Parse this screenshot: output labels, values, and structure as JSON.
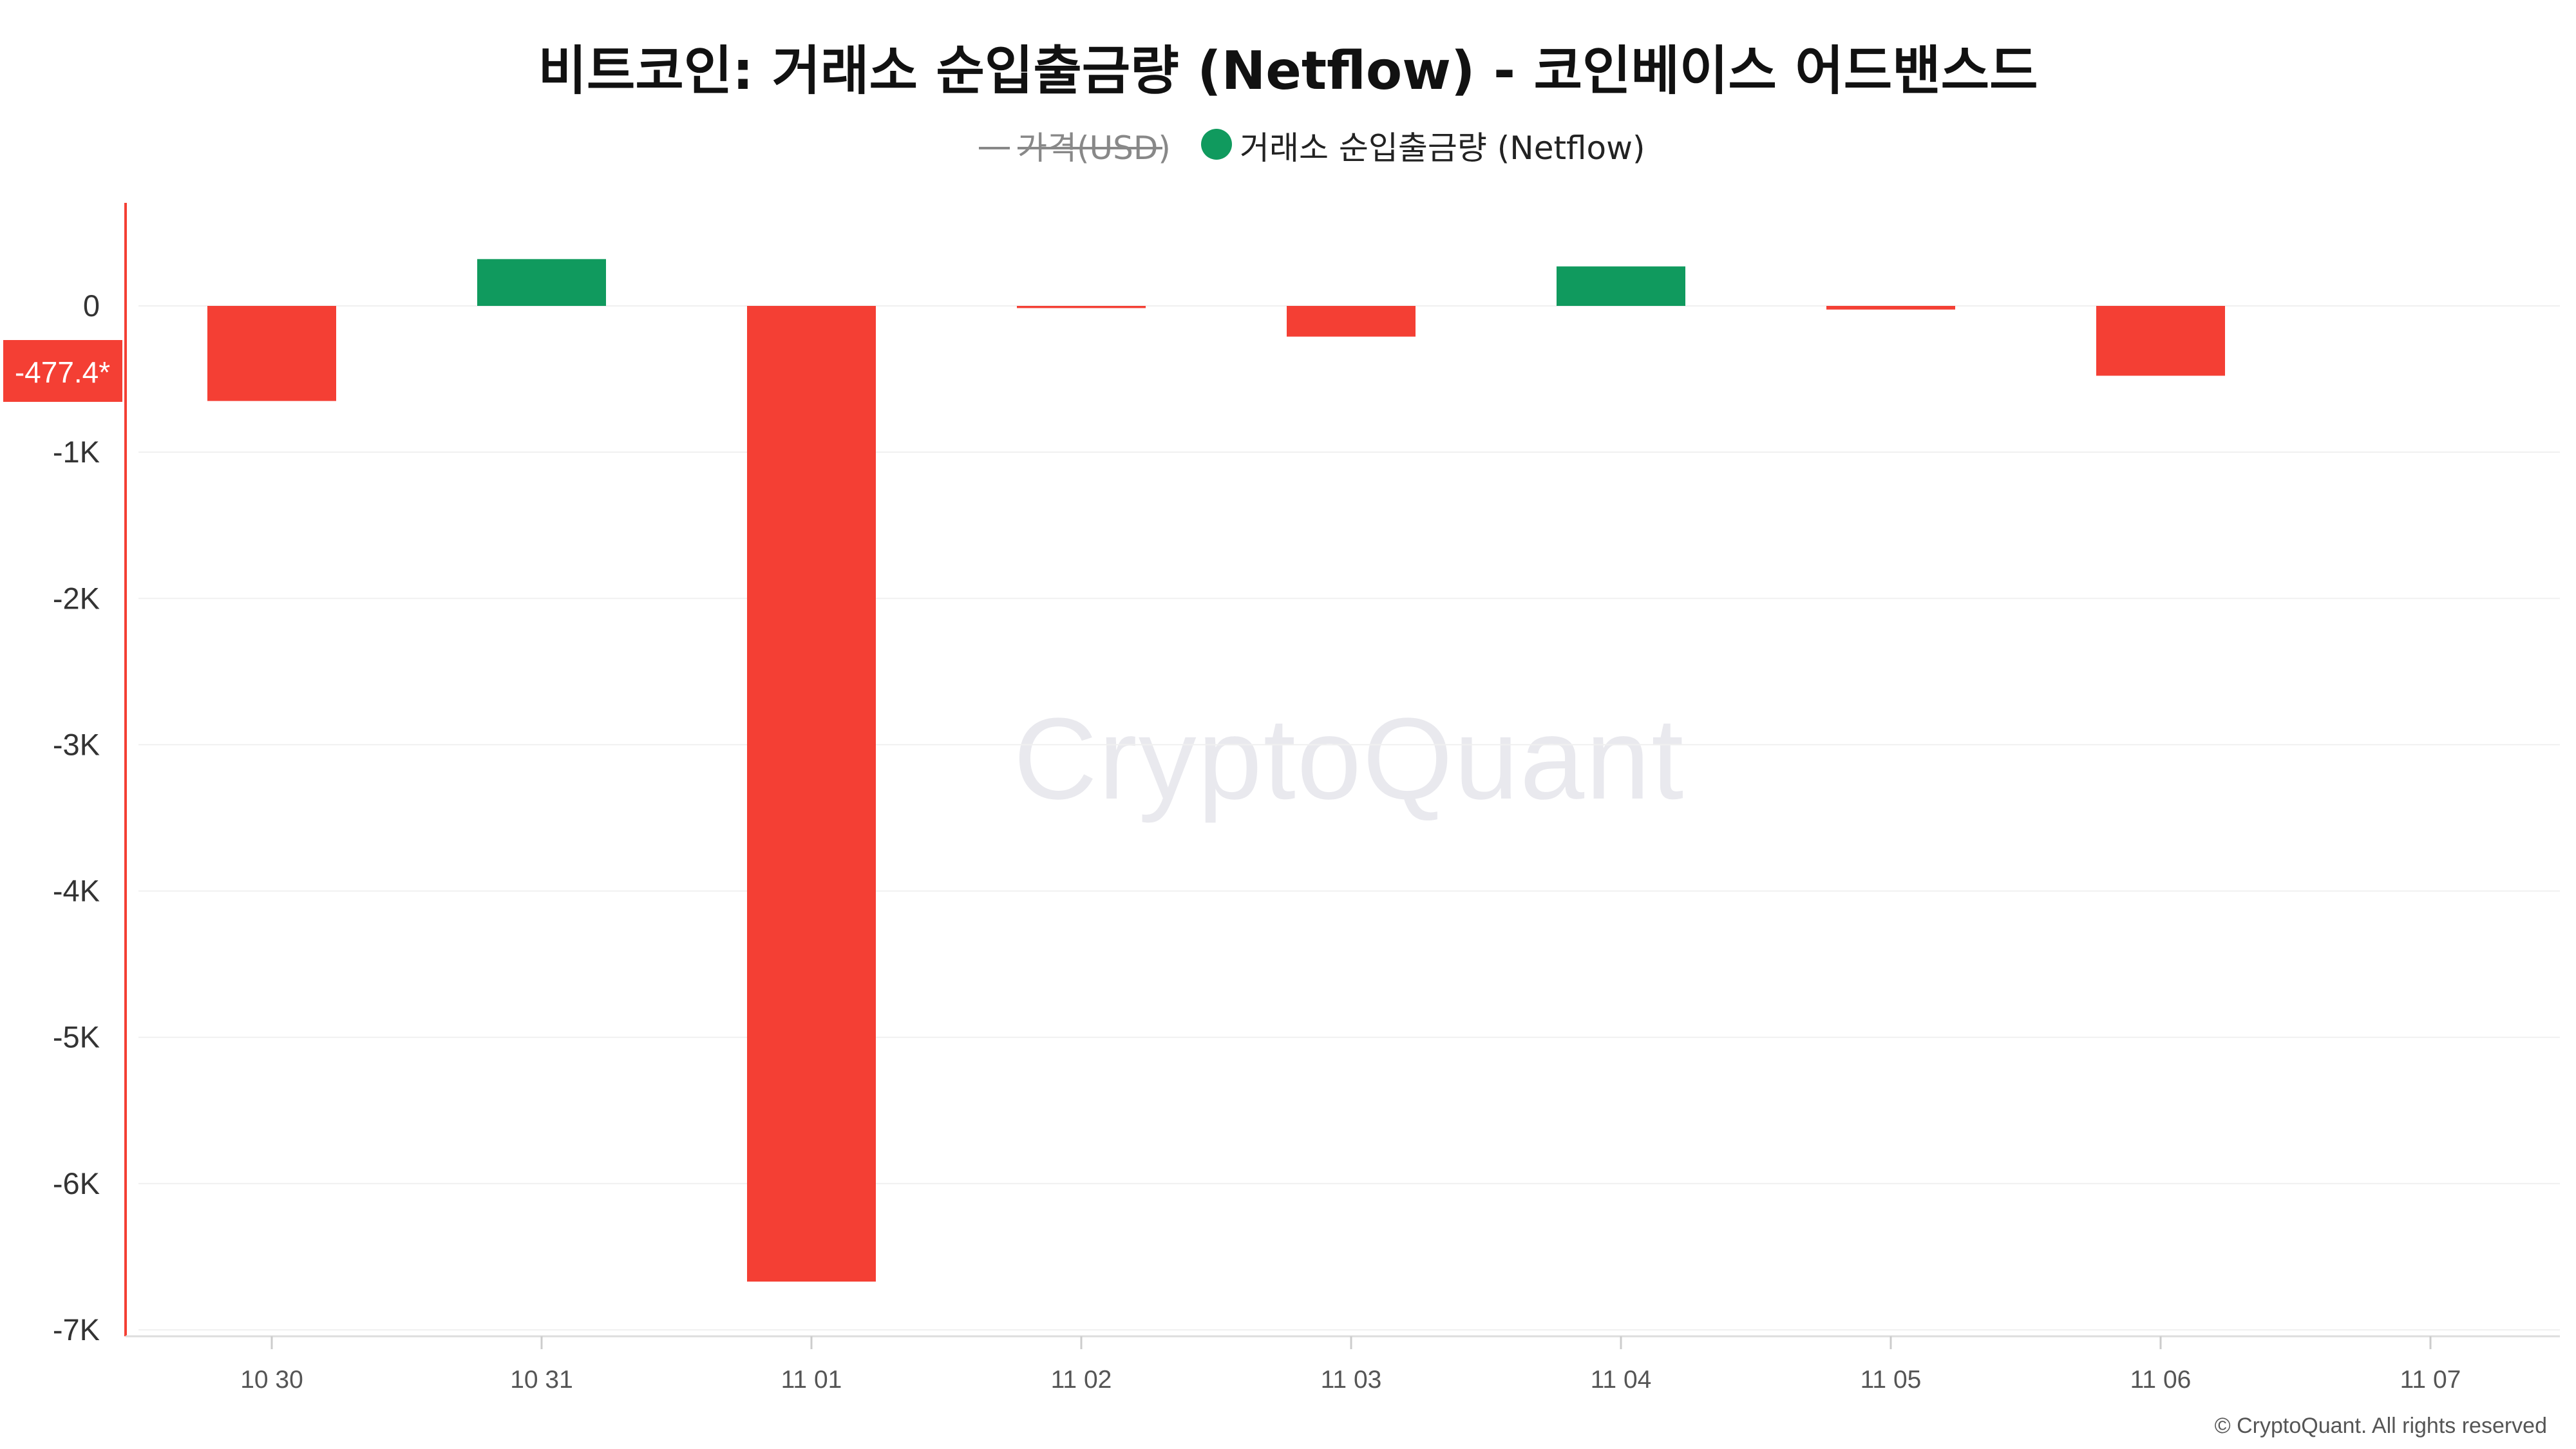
{
  "chart_data": {
    "type": "bar",
    "title": "비트코인: 거래소 순입출금량 (Netflow) - 코인베이스 어드밴스드",
    "legend": {
      "placement": "top-center",
      "items": [
        {
          "label": "가격(USD)",
          "symbol": "line",
          "disabled": true,
          "color": "#888888"
        },
        {
          "label": "거래소 순입출금량 (Netflow)",
          "symbol": "circle",
          "disabled": false,
          "color": "#109a5e"
        }
      ]
    },
    "categories": [
      "10 30",
      "10 31",
      "11 01",
      "11 02",
      "11 03",
      "11 04",
      "11 05",
      "11 06",
      "11 07"
    ],
    "series": [
      {
        "name": "거래소 순입출금량 (Netflow)",
        "values": [
          -650,
          320,
          -6670,
          -15,
          -210,
          270,
          -25,
          -477.4,
          null
        ]
      }
    ],
    "ylim": [
      -7000,
      500
    ],
    "yticks": [
      {
        "value": 0,
        "label": "0"
      },
      {
        "value": -1000,
        "label": "-1K"
      },
      {
        "value": -2000,
        "label": "-2K"
      },
      {
        "value": -3000,
        "label": "-3K"
      },
      {
        "value": -4000,
        "label": "-4K"
      },
      {
        "value": -5000,
        "label": "-5K"
      },
      {
        "value": -6000,
        "label": "-6K"
      },
      {
        "value": -7000,
        "label": "-7K"
      }
    ],
    "current_value": {
      "value": -477.4,
      "label": "-477.4*"
    },
    "grid": true,
    "colors": {
      "positive": "#109a5e",
      "negative": "#f43f34",
      "axis_accent": "#f43f34"
    },
    "watermark": "CryptoQuant",
    "copyright": "© CryptoQuant. All rights reserved"
  }
}
